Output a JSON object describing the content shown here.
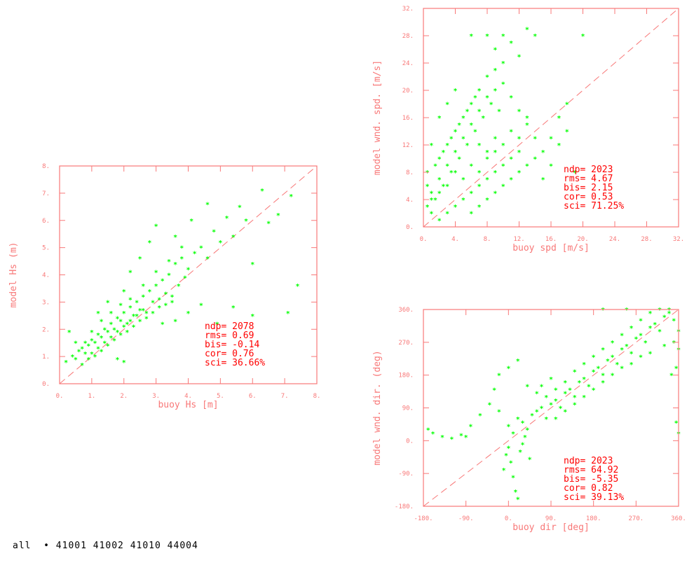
{
  "colors": {
    "frame": "#f87878",
    "label": "#f87878",
    "stats": "#ff0000",
    "points": "#00ff00",
    "diagonal": "#f87878"
  },
  "footer": "all  • 41001 41002 41010 44004",
  "chart_data": [
    {
      "type": "scatter",
      "id": "hs",
      "xlabel": "buoy Hs [m]",
      "ylabel": "model  Hs (m)",
      "xlim": [
        0,
        8
      ],
      "ylim": [
        0,
        8
      ],
      "xticks": [
        0,
        1,
        2,
        3,
        4,
        5,
        6,
        7,
        8
      ],
      "yticks": [
        0,
        1,
        2,
        3,
        4,
        5,
        6,
        7,
        8
      ],
      "xtick_labels": [
        "0.",
        "1.",
        "2.",
        "3.",
        "4.",
        "5.",
        "6.",
        "7.",
        "8."
      ],
      "ytick_labels": [
        "0.",
        "1.",
        "2.",
        "3.",
        "4.",
        "5.",
        "6.",
        "7.",
        "8."
      ],
      "diagonal": true,
      "stats": [
        "ndp= 2078",
        "rms=  0.69",
        "bis= -0.14",
        "cor=  0.76",
        "sci= 36.66%"
      ],
      "points": [
        [
          0.2,
          0.8
        ],
        [
          0.4,
          1.0
        ],
        [
          0.5,
          0.9
        ],
        [
          0.6,
          1.2
        ],
        [
          0.7,
          1.3
        ],
        [
          0.8,
          1.1
        ],
        [
          0.9,
          1.4
        ],
        [
          1.0,
          1.6
        ],
        [
          1.1,
          1.5
        ],
        [
          1.2,
          1.8
        ],
        [
          1.3,
          1.7
        ],
        [
          1.4,
          2.0
        ],
        [
          1.5,
          1.9
        ],
        [
          1.6,
          2.2
        ],
        [
          1.7,
          2.0
        ],
        [
          1.8,
          2.4
        ],
        [
          1.9,
          2.3
        ],
        [
          2.0,
          2.6
        ],
        [
          2.1,
          2.2
        ],
        [
          2.2,
          2.8
        ],
        [
          2.3,
          2.5
        ],
        [
          2.4,
          3.0
        ],
        [
          2.5,
          2.7
        ],
        [
          2.6,
          3.2
        ],
        [
          2.7,
          2.6
        ],
        [
          2.8,
          3.4
        ],
        [
          2.9,
          3.0
        ],
        [
          3.0,
          3.6
        ],
        [
          3.1,
          3.1
        ],
        [
          3.2,
          3.8
        ],
        [
          3.3,
          3.3
        ],
        [
          3.4,
          4.0
        ],
        [
          3.5,
          3.2
        ],
        [
          3.6,
          4.4
        ],
        [
          3.7,
          3.6
        ],
        [
          3.8,
          4.6
        ],
        [
          3.9,
          3.9
        ],
        [
          4.0,
          4.2
        ],
        [
          4.2,
          4.8
        ],
        [
          4.4,
          5.0
        ],
        [
          4.6,
          4.6
        ],
        [
          4.8,
          5.6
        ],
        [
          5.0,
          5.2
        ],
        [
          5.2,
          6.1
        ],
        [
          5.4,
          5.4
        ],
        [
          5.6,
          6.5
        ],
        [
          5.8,
          6.0
        ],
        [
          6.0,
          4.4
        ],
        [
          6.3,
          7.1
        ],
        [
          6.5,
          5.9
        ],
        [
          6.8,
          6.2
        ],
        [
          7.2,
          6.9
        ],
        [
          7.4,
          3.6
        ],
        [
          7.1,
          2.6
        ],
        [
          1.8,
          0.9
        ],
        [
          2.0,
          0.8
        ],
        [
          0.3,
          1.9
        ],
        [
          0.5,
          1.5
        ],
        [
          1.2,
          2.6
        ],
        [
          1.5,
          3.0
        ],
        [
          2.0,
          3.4
        ],
        [
          2.2,
          4.1
        ],
        [
          2.5,
          4.6
        ],
        [
          2.8,
          5.2
        ],
        [
          3.0,
          5.8
        ],
        [
          3.6,
          5.4
        ],
        [
          4.1,
          6.0
        ],
        [
          4.6,
          6.6
        ],
        [
          3.2,
          2.2
        ],
        [
          3.6,
          2.3
        ],
        [
          4.0,
          2.6
        ],
        [
          4.4,
          2.9
        ],
        [
          4.9,
          2.2
        ],
        [
          5.4,
          2.8
        ],
        [
          6.0,
          2.5
        ],
        [
          0.7,
          0.7
        ],
        [
          0.9,
          0.9
        ],
        [
          1.1,
          1.0
        ],
        [
          1.3,
          1.2
        ],
        [
          1.5,
          1.4
        ],
        [
          1.7,
          1.6
        ],
        [
          1.9,
          1.8
        ],
        [
          2.1,
          1.9
        ],
        [
          2.3,
          2.1
        ],
        [
          2.5,
          2.3
        ],
        [
          2.7,
          2.4
        ],
        [
          2.9,
          2.6
        ],
        [
          3.1,
          2.8
        ],
        [
          3.3,
          2.9
        ],
        [
          3.5,
          3.0
        ],
        [
          1.0,
          1.1
        ],
        [
          1.2,
          1.3
        ],
        [
          1.4,
          1.5
        ],
        [
          1.6,
          1.7
        ],
        [
          1.8,
          1.9
        ],
        [
          2.0,
          2.1
        ],
        [
          2.2,
          2.3
        ],
        [
          2.4,
          2.5
        ],
        [
          2.6,
          2.7
        ],
        [
          0.8,
          1.5
        ],
        [
          1.0,
          1.9
        ],
        [
          1.3,
          2.3
        ],
        [
          1.6,
          2.6
        ],
        [
          1.9,
          2.9
        ],
        [
          2.2,
          3.1
        ],
        [
          2.6,
          3.6
        ],
        [
          3.0,
          4.1
        ],
        [
          3.4,
          4.5
        ],
        [
          3.8,
          5.0
        ]
      ]
    },
    {
      "type": "scatter",
      "id": "wspd",
      "xlabel": "buoy spd [m/s]",
      "ylabel": "model wnd. spd. [m/s]",
      "xlim": [
        0,
        32
      ],
      "ylim": [
        0,
        32
      ],
      "xticks": [
        0,
        4,
        8,
        12,
        16,
        20,
        24,
        28,
        32
      ],
      "yticks": [
        0,
        4,
        8,
        12,
        16,
        20,
        24,
        28,
        32
      ],
      "xtick_labels": [
        "0.",
        "4.",
        "8.",
        "12.",
        "16.",
        "20.",
        "24.",
        "28.",
        "32."
      ],
      "ytick_labels": [
        "0.",
        "4.",
        "8.",
        "12.",
        "16.",
        "20.",
        "24.",
        "28.",
        "32."
      ],
      "diagonal": true,
      "stats": [
        "ndp= 2023",
        "rms=  4.67",
        "bis=  2.15",
        "cor=  0.53",
        "sci= 71.25%"
      ],
      "points": [
        [
          0.5,
          3
        ],
        [
          1,
          5
        ],
        [
          1.5,
          4
        ],
        [
          2,
          7
        ],
        [
          2.5,
          6
        ],
        [
          3,
          9
        ],
        [
          3.5,
          8
        ],
        [
          4,
          11
        ],
        [
          4.5,
          10
        ],
        [
          5,
          13
        ],
        [
          5.5,
          12
        ],
        [
          6,
          15
        ],
        [
          6.5,
          14
        ],
        [
          7,
          17
        ],
        [
          7.5,
          16
        ],
        [
          8,
          19
        ],
        [
          8.5,
          18
        ],
        [
          9,
          20
        ],
        [
          9.5,
          17
        ],
        [
          10,
          21
        ],
        [
          11,
          19
        ],
        [
          12,
          17
        ],
        [
          13,
          15
        ],
        [
          14,
          13
        ],
        [
          15,
          11
        ],
        [
          16,
          9
        ],
        [
          17,
          12
        ],
        [
          18,
          14
        ],
        [
          19,
          8
        ],
        [
          20,
          28
        ],
        [
          8,
          28
        ],
        [
          6,
          28
        ],
        [
          10,
          28
        ],
        [
          11,
          27
        ],
        [
          13,
          29
        ],
        [
          14,
          28
        ],
        [
          9,
          26
        ],
        [
          12,
          25
        ],
        [
          3,
          18
        ],
        [
          4,
          20
        ],
        [
          2,
          16
        ],
        [
          1,
          12
        ],
        [
          0.5,
          8
        ],
        [
          1,
          2
        ],
        [
          2,
          1
        ],
        [
          3,
          2
        ],
        [
          4,
          3
        ],
        [
          5,
          4
        ],
        [
          6,
          5
        ],
        [
          7,
          6
        ],
        [
          8,
          7
        ],
        [
          9,
          8
        ],
        [
          10,
          9
        ],
        [
          11,
          10
        ],
        [
          12,
          11
        ],
        [
          2,
          10
        ],
        [
          3,
          12
        ],
        [
          4,
          14
        ],
        [
          5,
          16
        ],
        [
          6,
          18
        ],
        [
          7,
          20
        ],
        [
          8,
          22
        ],
        [
          9,
          23
        ],
        [
          10,
          24
        ],
        [
          7,
          12
        ],
        [
          8,
          11
        ],
        [
          9,
          13
        ],
        [
          10,
          12
        ],
        [
          11,
          14
        ],
        [
          12,
          13
        ],
        [
          13,
          16
        ],
        [
          5,
          7
        ],
        [
          6,
          9
        ],
        [
          7,
          8
        ],
        [
          8,
          10
        ],
        [
          9,
          11
        ],
        [
          4,
          8
        ],
        [
          3,
          6
        ],
        [
          2,
          5
        ],
        [
          1,
          4
        ],
        [
          6,
          2
        ],
        [
          7,
          3
        ],
        [
          8,
          4
        ],
        [
          9,
          5
        ],
        [
          10,
          6
        ],
        [
          11,
          7
        ],
        [
          12,
          8
        ],
        [
          13,
          9
        ],
        [
          14,
          10
        ],
        [
          15,
          7
        ],
        [
          16,
          13
        ],
        [
          17,
          16
        ],
        [
          18,
          18
        ],
        [
          0.5,
          6
        ],
        [
          1.5,
          9
        ],
        [
          2.5,
          11
        ],
        [
          3.5,
          13
        ],
        [
          4.5,
          15
        ],
        [
          5.5,
          17
        ],
        [
          6.5,
          19
        ]
      ]
    },
    {
      "type": "scatter",
      "id": "wdir",
      "xlabel": "buoy dir [deg]",
      "ylabel": "model wnd. dir. (deg)",
      "xlim": [
        -180,
        360
      ],
      "ylim": [
        -180,
        360
      ],
      "xticks": [
        -180,
        -90,
        0,
        90,
        180,
        270,
        360
      ],
      "yticks": [
        -180,
        -90,
        0,
        90,
        180,
        270,
        360
      ],
      "xtick_labels": [
        "-180.",
        "-90.",
        "0.",
        "90.",
        "180.",
        "270.",
        "360."
      ],
      "ytick_labels": [
        "-180.",
        "-90.",
        "0.",
        "90.",
        "180.",
        "270.",
        "360."
      ],
      "diagonal": true,
      "stats": [
        "ndp= 2023",
        "rms= 64.92",
        "bis= -5.35",
        "cor=  0.82",
        "sci= 39.13%"
      ],
      "points": [
        [
          -160,
          20
        ],
        [
          -140,
          10
        ],
        [
          -120,
          5
        ],
        [
          -100,
          15
        ],
        [
          -80,
          40
        ],
        [
          -60,
          70
        ],
        [
          -40,
          100
        ],
        [
          -20,
          80
        ],
        [
          0,
          40
        ],
        [
          10,
          20
        ],
        [
          20,
          60
        ],
        [
          30,
          50
        ],
        [
          40,
          30
        ],
        [
          50,
          70
        ],
        [
          60,
          80
        ],
        [
          70,
          90
        ],
        [
          80,
          60
        ],
        [
          90,
          100
        ],
        [
          100,
          110
        ],
        [
          110,
          90
        ],
        [
          120,
          130
        ],
        [
          130,
          140
        ],
        [
          140,
          120
        ],
        [
          150,
          160
        ],
        [
          160,
          170
        ],
        [
          170,
          150
        ],
        [
          180,
          190
        ],
        [
          190,
          200
        ],
        [
          200,
          180
        ],
        [
          210,
          220
        ],
        [
          220,
          230
        ],
        [
          230,
          210
        ],
        [
          240,
          250
        ],
        [
          250,
          260
        ],
        [
          260,
          240
        ],
        [
          270,
          280
        ],
        [
          280,
          290
        ],
        [
          290,
          270
        ],
        [
          300,
          310
        ],
        [
          310,
          320
        ],
        [
          320,
          300
        ],
        [
          330,
          340
        ],
        [
          340,
          350
        ],
        [
          350,
          330
        ],
        [
          360,
          300
        ],
        [
          360,
          250
        ],
        [
          355,
          200
        ],
        [
          345,
          180
        ],
        [
          0,
          -20
        ],
        [
          5,
          -60
        ],
        [
          10,
          -100
        ],
        [
          15,
          -140
        ],
        [
          20,
          -160
        ],
        [
          -5,
          -40
        ],
        [
          -10,
          -80
        ],
        [
          25,
          -30
        ],
        [
          30,
          -10
        ],
        [
          35,
          10
        ],
        [
          45,
          -50
        ],
        [
          -30,
          140
        ],
        [
          -20,
          180
        ],
        [
          0,
          200
        ],
        [
          20,
          220
        ],
        [
          40,
          150
        ],
        [
          60,
          130
        ],
        [
          80,
          120
        ],
        [
          100,
          140
        ],
        [
          120,
          160
        ],
        [
          140,
          190
        ],
        [
          160,
          210
        ],
        [
          180,
          230
        ],
        [
          200,
          250
        ],
        [
          220,
          270
        ],
        [
          240,
          290
        ],
        [
          260,
          310
        ],
        [
          280,
          330
        ],
        [
          300,
          350
        ],
        [
          320,
          360
        ],
        [
          340,
          360
        ],
        [
          200,
          360
        ],
        [
          250,
          360
        ],
        [
          100,
          60
        ],
        [
          120,
          80
        ],
        [
          140,
          100
        ],
        [
          160,
          120
        ],
        [
          180,
          140
        ],
        [
          200,
          160
        ],
        [
          220,
          180
        ],
        [
          240,
          200
        ],
        [
          260,
          210
        ],
        [
          280,
          230
        ],
        [
          300,
          240
        ],
        [
          330,
          260
        ],
        [
          350,
          270
        ],
        [
          360,
          20
        ],
        [
          355,
          50
        ],
        [
          -170,
          30
        ],
        [
          -90,
          10
        ],
        [
          70,
          150
        ],
        [
          90,
          170
        ]
      ]
    }
  ]
}
